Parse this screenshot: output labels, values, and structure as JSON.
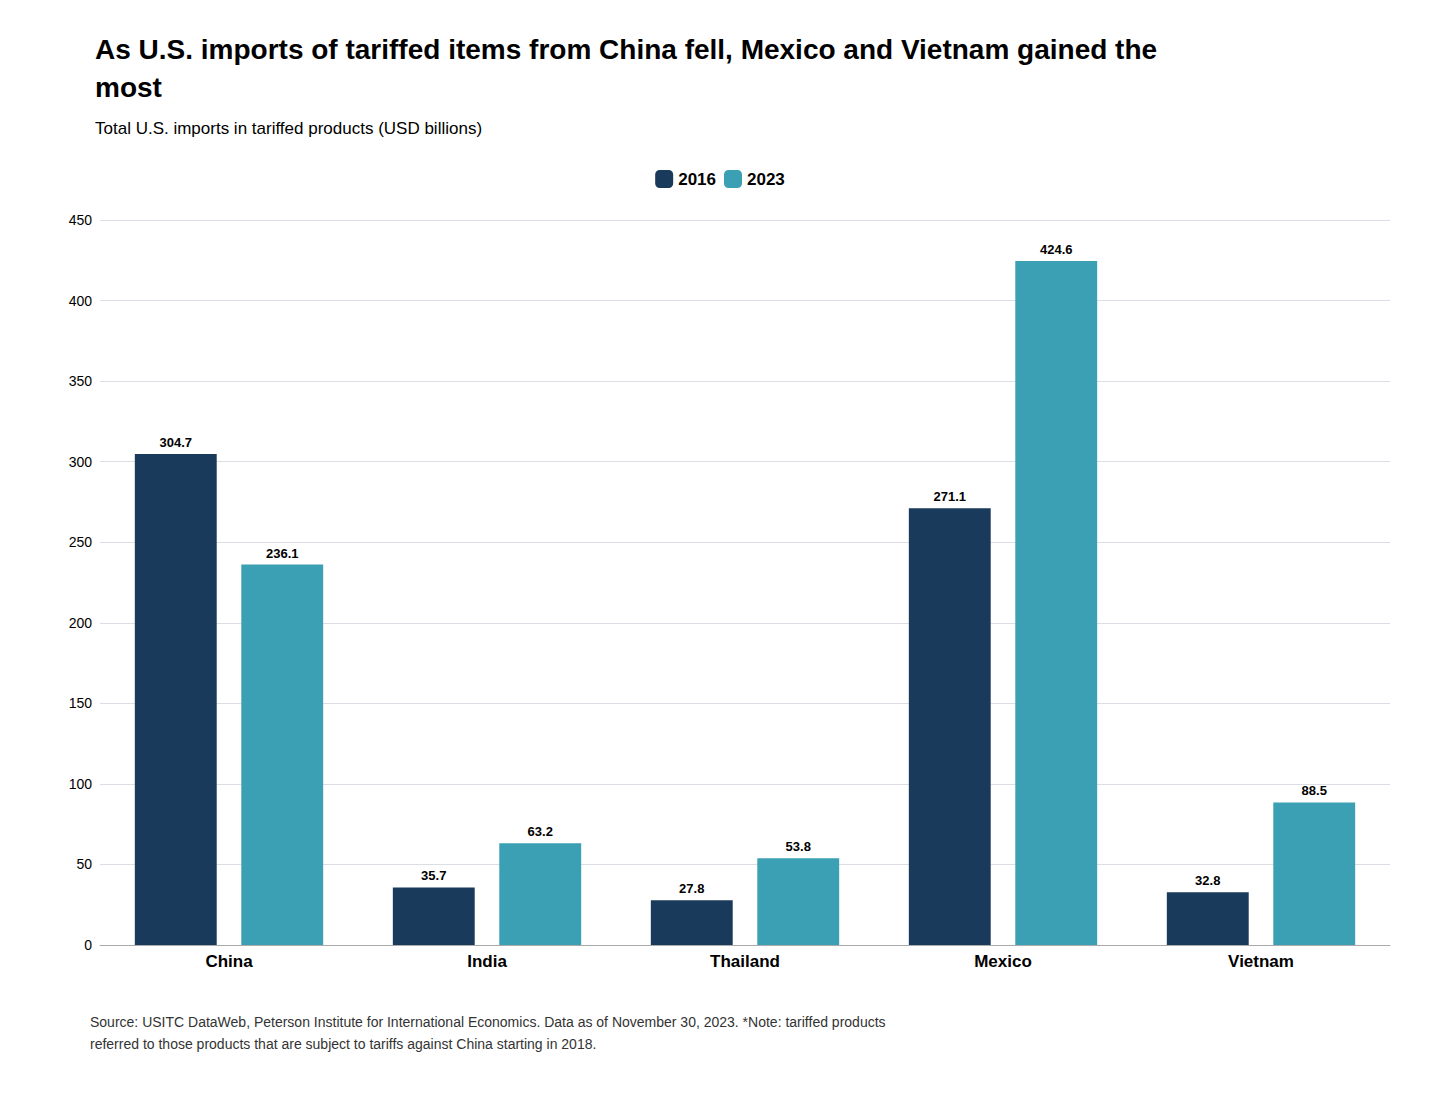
{
  "chart_data": {
    "type": "bar",
    "title": "As U.S. imports of tariffed items from China fell, Mexico and Vietnam gained the\nmost",
    "subtitle": "Total U.S. imports in tariffed products (USD billions)",
    "source": "Source: USITC DataWeb, Peterson Institute for International Economics. Data as of November 30, 2023. *Note: tariffed products\nreferred to those products that are subject to tariffs against China starting in 2018.",
    "categories": [
      "China",
      "India",
      "Thailand",
      "Mexico",
      "Vietnam"
    ],
    "series": [
      {
        "name": "2016",
        "color": "#1a3a5c",
        "values": [
          304.7,
          35.7,
          27.8,
          271.1,
          32.8
        ]
      },
      {
        "name": "2023",
        "color": "#3ca0b4",
        "values": [
          236.1,
          63.2,
          53.8,
          424.6,
          88.5
        ]
      }
    ],
    "ylim": [
      0,
      450
    ],
    "yticks": [
      0,
      50,
      100,
      150,
      200,
      250,
      300,
      350,
      400,
      450
    ],
    "grid": true,
    "legend": "upper center",
    "data_labels": true
  }
}
